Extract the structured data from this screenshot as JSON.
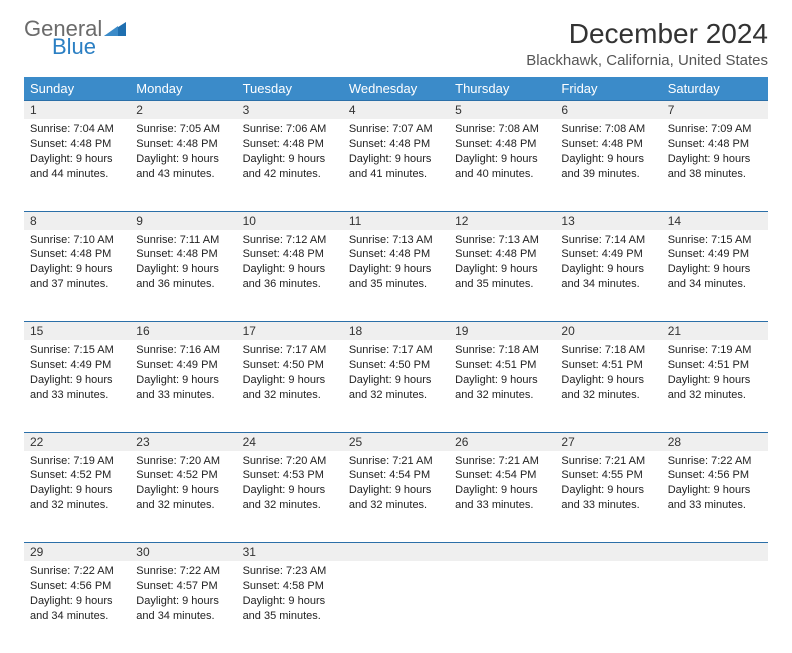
{
  "logo": {
    "text_general": "General",
    "text_blue": "Blue",
    "tri_color": "#1f6fb0"
  },
  "header": {
    "month_title": "December 2024",
    "location": "Blackhawk, California, United States"
  },
  "colors": {
    "header_bg": "#3b8bc9",
    "header_text": "#ffffff",
    "daynum_bg": "#efefef",
    "daynum_border_top": "#2b6fa8",
    "body_text": "#222222"
  },
  "days_of_week": [
    "Sunday",
    "Monday",
    "Tuesday",
    "Wednesday",
    "Thursday",
    "Friday",
    "Saturday"
  ],
  "weeks": [
    [
      {
        "n": "1",
        "sr": "Sunrise: 7:04 AM",
        "ss": "Sunset: 4:48 PM",
        "d1": "Daylight: 9 hours",
        "d2": "and 44 minutes."
      },
      {
        "n": "2",
        "sr": "Sunrise: 7:05 AM",
        "ss": "Sunset: 4:48 PM",
        "d1": "Daylight: 9 hours",
        "d2": "and 43 minutes."
      },
      {
        "n": "3",
        "sr": "Sunrise: 7:06 AM",
        "ss": "Sunset: 4:48 PM",
        "d1": "Daylight: 9 hours",
        "d2": "and 42 minutes."
      },
      {
        "n": "4",
        "sr": "Sunrise: 7:07 AM",
        "ss": "Sunset: 4:48 PM",
        "d1": "Daylight: 9 hours",
        "d2": "and 41 minutes."
      },
      {
        "n": "5",
        "sr": "Sunrise: 7:08 AM",
        "ss": "Sunset: 4:48 PM",
        "d1": "Daylight: 9 hours",
        "d2": "and 40 minutes."
      },
      {
        "n": "6",
        "sr": "Sunrise: 7:08 AM",
        "ss": "Sunset: 4:48 PM",
        "d1": "Daylight: 9 hours",
        "d2": "and 39 minutes."
      },
      {
        "n": "7",
        "sr": "Sunrise: 7:09 AM",
        "ss": "Sunset: 4:48 PM",
        "d1": "Daylight: 9 hours",
        "d2": "and 38 minutes."
      }
    ],
    [
      {
        "n": "8",
        "sr": "Sunrise: 7:10 AM",
        "ss": "Sunset: 4:48 PM",
        "d1": "Daylight: 9 hours",
        "d2": "and 37 minutes."
      },
      {
        "n": "9",
        "sr": "Sunrise: 7:11 AM",
        "ss": "Sunset: 4:48 PM",
        "d1": "Daylight: 9 hours",
        "d2": "and 36 minutes."
      },
      {
        "n": "10",
        "sr": "Sunrise: 7:12 AM",
        "ss": "Sunset: 4:48 PM",
        "d1": "Daylight: 9 hours",
        "d2": "and 36 minutes."
      },
      {
        "n": "11",
        "sr": "Sunrise: 7:13 AM",
        "ss": "Sunset: 4:48 PM",
        "d1": "Daylight: 9 hours",
        "d2": "and 35 minutes."
      },
      {
        "n": "12",
        "sr": "Sunrise: 7:13 AM",
        "ss": "Sunset: 4:48 PM",
        "d1": "Daylight: 9 hours",
        "d2": "and 35 minutes."
      },
      {
        "n": "13",
        "sr": "Sunrise: 7:14 AM",
        "ss": "Sunset: 4:49 PM",
        "d1": "Daylight: 9 hours",
        "d2": "and 34 minutes."
      },
      {
        "n": "14",
        "sr": "Sunrise: 7:15 AM",
        "ss": "Sunset: 4:49 PM",
        "d1": "Daylight: 9 hours",
        "d2": "and 34 minutes."
      }
    ],
    [
      {
        "n": "15",
        "sr": "Sunrise: 7:15 AM",
        "ss": "Sunset: 4:49 PM",
        "d1": "Daylight: 9 hours",
        "d2": "and 33 minutes."
      },
      {
        "n": "16",
        "sr": "Sunrise: 7:16 AM",
        "ss": "Sunset: 4:49 PM",
        "d1": "Daylight: 9 hours",
        "d2": "and 33 minutes."
      },
      {
        "n": "17",
        "sr": "Sunrise: 7:17 AM",
        "ss": "Sunset: 4:50 PM",
        "d1": "Daylight: 9 hours",
        "d2": "and 32 minutes."
      },
      {
        "n": "18",
        "sr": "Sunrise: 7:17 AM",
        "ss": "Sunset: 4:50 PM",
        "d1": "Daylight: 9 hours",
        "d2": "and 32 minutes."
      },
      {
        "n": "19",
        "sr": "Sunrise: 7:18 AM",
        "ss": "Sunset: 4:51 PM",
        "d1": "Daylight: 9 hours",
        "d2": "and 32 minutes."
      },
      {
        "n": "20",
        "sr": "Sunrise: 7:18 AM",
        "ss": "Sunset: 4:51 PM",
        "d1": "Daylight: 9 hours",
        "d2": "and 32 minutes."
      },
      {
        "n": "21",
        "sr": "Sunrise: 7:19 AM",
        "ss": "Sunset: 4:51 PM",
        "d1": "Daylight: 9 hours",
        "d2": "and 32 minutes."
      }
    ],
    [
      {
        "n": "22",
        "sr": "Sunrise: 7:19 AM",
        "ss": "Sunset: 4:52 PM",
        "d1": "Daylight: 9 hours",
        "d2": "and 32 minutes."
      },
      {
        "n": "23",
        "sr": "Sunrise: 7:20 AM",
        "ss": "Sunset: 4:52 PM",
        "d1": "Daylight: 9 hours",
        "d2": "and 32 minutes."
      },
      {
        "n": "24",
        "sr": "Sunrise: 7:20 AM",
        "ss": "Sunset: 4:53 PM",
        "d1": "Daylight: 9 hours",
        "d2": "and 32 minutes."
      },
      {
        "n": "25",
        "sr": "Sunrise: 7:21 AM",
        "ss": "Sunset: 4:54 PM",
        "d1": "Daylight: 9 hours",
        "d2": "and 32 minutes."
      },
      {
        "n": "26",
        "sr": "Sunrise: 7:21 AM",
        "ss": "Sunset: 4:54 PM",
        "d1": "Daylight: 9 hours",
        "d2": "and 33 minutes."
      },
      {
        "n": "27",
        "sr": "Sunrise: 7:21 AM",
        "ss": "Sunset: 4:55 PM",
        "d1": "Daylight: 9 hours",
        "d2": "and 33 minutes."
      },
      {
        "n": "28",
        "sr": "Sunrise: 7:22 AM",
        "ss": "Sunset: 4:56 PM",
        "d1": "Daylight: 9 hours",
        "d2": "and 33 minutes."
      }
    ],
    [
      {
        "n": "29",
        "sr": "Sunrise: 7:22 AM",
        "ss": "Sunset: 4:56 PM",
        "d1": "Daylight: 9 hours",
        "d2": "and 34 minutes."
      },
      {
        "n": "30",
        "sr": "Sunrise: 7:22 AM",
        "ss": "Sunset: 4:57 PM",
        "d1": "Daylight: 9 hours",
        "d2": "and 34 minutes."
      },
      {
        "n": "31",
        "sr": "Sunrise: 7:23 AM",
        "ss": "Sunset: 4:58 PM",
        "d1": "Daylight: 9 hours",
        "d2": "and 35 minutes."
      },
      null,
      null,
      null,
      null
    ]
  ]
}
